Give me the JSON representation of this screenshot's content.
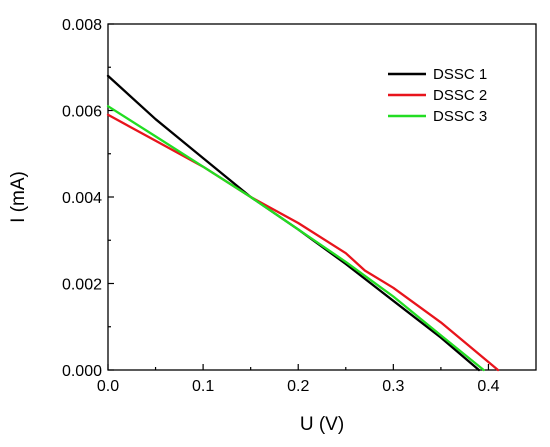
{
  "chart_data": {
    "type": "line",
    "xlabel": "U (V)",
    "ylabel": "I (mA)",
    "xlim": [
      0.0,
      0.45
    ],
    "ylim": [
      0.0,
      0.008
    ],
    "x_ticks": [
      "0.0",
      "0.1",
      "0.2",
      "0.3",
      "0.4"
    ],
    "y_ticks": [
      "0.000",
      "0.002",
      "0.004",
      "0.006",
      "0.008"
    ],
    "grid": false,
    "legend_position": "top-right",
    "series": [
      {
        "name": "DSSC 1",
        "color": "#000000",
        "x": [
          0.0,
          0.05,
          0.1,
          0.15,
          0.2,
          0.25,
          0.3,
          0.35,
          0.39
        ],
        "y": [
          0.0068,
          0.0058,
          0.0049,
          0.004,
          0.00325,
          0.00245,
          0.0016,
          0.00075,
          0.0
        ]
      },
      {
        "name": "DSSC 2",
        "color": "#e8141c",
        "x": [
          0.0,
          0.05,
          0.1,
          0.15,
          0.2,
          0.25,
          0.27,
          0.3,
          0.35,
          0.41
        ],
        "y": [
          0.0059,
          0.0053,
          0.0047,
          0.004,
          0.0034,
          0.0027,
          0.0023,
          0.0019,
          0.0011,
          0.0
        ]
      },
      {
        "name": "DSSC 3",
        "color": "#22dd22",
        "x": [
          0.0,
          0.05,
          0.1,
          0.15,
          0.2,
          0.25,
          0.3,
          0.35,
          0.395
        ],
        "y": [
          0.0061,
          0.0054,
          0.0047,
          0.004,
          0.00325,
          0.0025,
          0.0017,
          0.0008,
          0.0
        ]
      }
    ]
  }
}
